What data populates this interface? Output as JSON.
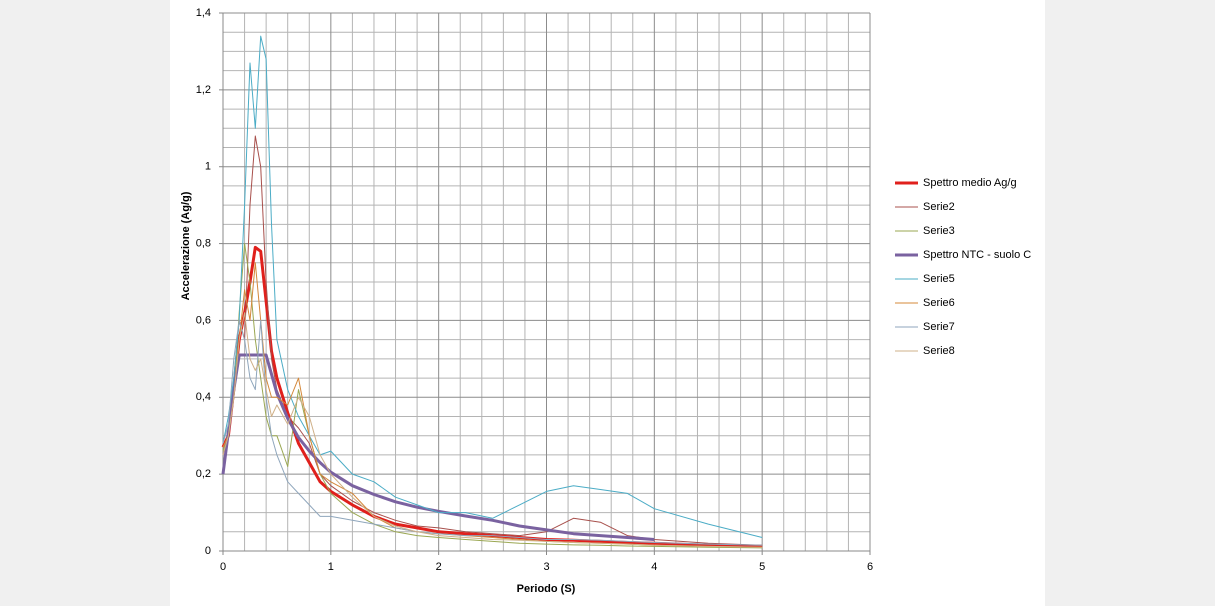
{
  "chart_data": {
    "type": "line",
    "x_label": "Periodo (S)",
    "y_label": "Accelerazione (Ag/g)",
    "x": [
      0,
      0.05,
      0.1,
      0.15,
      0.2,
      0.25,
      0.3,
      0.35,
      0.4,
      0.45,
      0.5,
      0.6,
      0.7,
      0.8,
      0.9,
      1,
      1.2,
      1.4,
      1.6,
      1.8,
      2,
      2.25,
      2.5,
      2.75,
      3,
      3.25,
      3.5,
      3.75,
      4,
      4.5,
      5
    ],
    "series": [
      {
        "name": "Spettro medio Ag/g",
        "color": "#e0201c",
        "line_width": 3,
        "values": [
          0.27,
          0.3,
          0.42,
          0.55,
          0.62,
          0.7,
          0.79,
          0.78,
          0.65,
          0.52,
          0.45,
          0.36,
          0.28,
          0.23,
          0.18,
          0.155,
          0.12,
          0.09,
          0.07,
          0.06,
          0.05,
          0.045,
          0.04,
          0.035,
          0.03,
          0.028,
          0.025,
          0.022,
          0.02,
          0.015,
          0.012
        ]
      },
      {
        "name": "Serie2",
        "color": "#a8504c",
        "line_width": 1,
        "values": [
          0.25,
          0.3,
          0.45,
          0.6,
          0.55,
          0.9,
          1.08,
          1.0,
          0.7,
          0.5,
          0.42,
          0.35,
          0.32,
          0.28,
          0.2,
          0.17,
          0.13,
          0.1,
          0.08,
          0.065,
          0.06,
          0.05,
          0.045,
          0.04,
          0.05,
          0.085,
          0.075,
          0.04,
          0.03,
          0.02,
          0.015
        ]
      },
      {
        "name": "Serie3",
        "color": "#9aa752",
        "line_width": 1,
        "values": [
          0.26,
          0.3,
          0.4,
          0.62,
          0.8,
          0.7,
          0.55,
          0.45,
          0.35,
          0.3,
          0.3,
          0.22,
          0.42,
          0.3,
          0.2,
          0.15,
          0.1,
          0.07,
          0.05,
          0.04,
          0.035,
          0.03,
          0.025,
          0.02,
          0.018,
          0.016,
          0.015,
          0.013,
          0.012,
          0.01,
          0.008
        ]
      },
      {
        "name": "Spettro NTC  - suolo C",
        "color": "#7a62a0",
        "line_width": 3,
        "values": [
          0.2,
          0.31,
          0.42,
          0.51,
          0.51,
          0.51,
          0.51,
          0.51,
          0.51,
          0.46,
          0.41,
          0.345,
          0.295,
          0.26,
          0.23,
          0.205,
          0.17,
          0.147,
          0.128,
          0.114,
          0.103,
          0.091,
          0.08,
          0.065,
          0.055,
          0.045,
          0.04,
          0.035,
          0.03,
          null,
          null
        ]
      },
      {
        "name": "Serie5",
        "color": "#4bacc6",
        "line_width": 1,
        "values": [
          0.28,
          0.35,
          0.45,
          0.6,
          0.9,
          1.27,
          1.1,
          1.34,
          1.28,
          0.85,
          0.55,
          0.42,
          0.35,
          0.3,
          0.25,
          0.26,
          0.2,
          0.18,
          0.14,
          0.12,
          0.1,
          0.1,
          0.085,
          0.12,
          0.155,
          0.17,
          0.16,
          0.15,
          0.11,
          0.07,
          0.035
        ]
      },
      {
        "name": "Serie6",
        "color": "#d4883a",
        "line_width": 1,
        "values": [
          0.27,
          0.3,
          0.4,
          0.55,
          0.68,
          0.6,
          0.75,
          0.6,
          0.45,
          0.4,
          0.4,
          0.38,
          0.45,
          0.3,
          0.2,
          0.18,
          0.15,
          0.09,
          0.06,
          0.05,
          0.045,
          0.04,
          0.035,
          0.03,
          0.025,
          0.022,
          0.02,
          0.018,
          0.015,
          0.012,
          0.01
        ]
      },
      {
        "name": "Serie7",
        "color": "#8fa6bc",
        "line_width": 1,
        "values": [
          0.28,
          0.33,
          0.5,
          0.6,
          0.55,
          0.45,
          0.42,
          0.6,
          0.4,
          0.3,
          0.25,
          0.18,
          0.15,
          0.12,
          0.09,
          0.09,
          0.08,
          0.07,
          0.06,
          0.05,
          0.045,
          0.04,
          0.04,
          0.035,
          0.03,
          0.03,
          0.028,
          0.025,
          0.022,
          0.018,
          0.015
        ]
      },
      {
        "name": "Serie8",
        "color": "#cfb088",
        "line_width": 1,
        "values": [
          0.25,
          0.3,
          0.4,
          0.55,
          0.62,
          0.5,
          0.47,
          0.5,
          0.42,
          0.35,
          0.38,
          0.33,
          0.4,
          0.35,
          0.25,
          0.2,
          0.14,
          0.09,
          0.065,
          0.05,
          0.04,
          0.035,
          0.03,
          0.028,
          0.025,
          0.022,
          0.02,
          0.018,
          0.015,
          0.012,
          0.01
        ]
      }
    ],
    "xlim": [
      0,
      6
    ],
    "xticks": [
      0,
      1,
      2,
      3,
      4,
      5,
      6
    ],
    "ylim": [
      0,
      1.4
    ],
    "yticks": [
      0,
      {
        "value": 0.2,
        "label": "0,2"
      },
      {
        "value": 0.4,
        "label": "0,4"
      },
      {
        "value": 0.6,
        "label": "0,6"
      },
      {
        "value": 0.8,
        "label": "0,8"
      },
      1,
      {
        "value": 1.2,
        "label": "1,2"
      },
      {
        "value": 1.4,
        "label": "1,4"
      }
    ],
    "grid": true,
    "legend": "right"
  }
}
